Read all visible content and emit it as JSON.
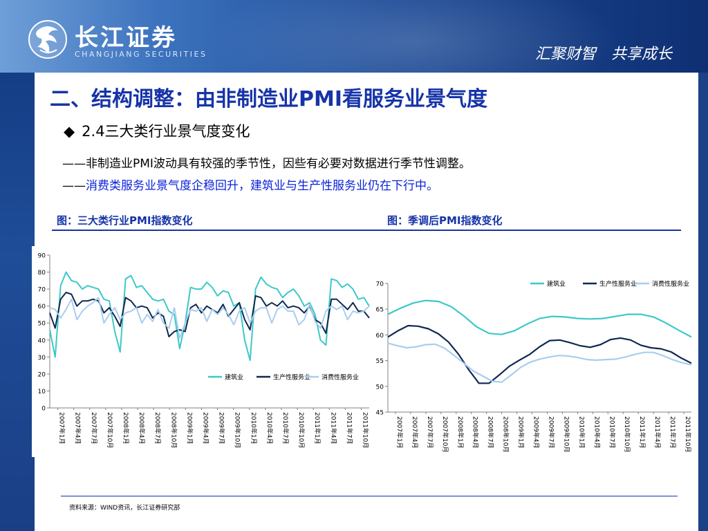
{
  "header": {
    "brand_cn": "长江证券",
    "brand_en": "CHANGJIANG SECURITIES",
    "slogan": "汇聚财智　共享成长"
  },
  "title": "二、结构调整：由非制造业PMI看服务业景气度",
  "subtitle": "2.4三大类行业景气度变化",
  "subtitle_bullet": "◆",
  "text_line1": "——非制造业PMI波动具有较强的季节性，因些有必要对数据进行季节性调整。",
  "text_line2_dash": "——",
  "text_line2_body": "消费类服务业景气度企稳回升，建筑业与生产性服务业仍在下行中。",
  "figure1_title": "图：三大类行业PMI指数变化",
  "figure2_title": "图：季调后PMI指数变化",
  "source_note": "资料来源：WIND资讯，长江证券研究部",
  "colors": {
    "construction": "#3cc8c8",
    "producer_services": "#0f2850",
    "consumer_services": "#a8cdf0",
    "accent_blue": "#1633a8"
  },
  "chart_data": [
    {
      "type": "line",
      "title": "",
      "ylim": [
        0,
        90
      ],
      "yticks": [
        0,
        10,
        20,
        30,
        40,
        50,
        60,
        70,
        80,
        90
      ],
      "x_tick_labels": [
        "2007年1月",
        "2007年4月",
        "2007年7月",
        "2007年10月",
        "2008年1月",
        "2008年4月",
        "2008年7月",
        "2008年10月",
        "2009年1月",
        "2009年4月",
        "2009年7月",
        "2009年10月",
        "2010年1月",
        "2010年4月",
        "2010年7月",
        "2010年10月",
        "2011年1月",
        "2011年4月",
        "2011年7月",
        "2011年10月"
      ],
      "grid": false,
      "legend_position": "bottom-right",
      "series": [
        {
          "name": "建筑业",
          "values": [
            46,
            30,
            72,
            80,
            75,
            74,
            70,
            72,
            71,
            70,
            64,
            63,
            45,
            33,
            76,
            78,
            71,
            72,
            68,
            64,
            63,
            64,
            57,
            55,
            35,
            50,
            71,
            70,
            70,
            74,
            71,
            66,
            69,
            68,
            60,
            62,
            40,
            28,
            70,
            77,
            73,
            71,
            70,
            65,
            68,
            70,
            66,
            60,
            62,
            55,
            40,
            37,
            76,
            75,
            71,
            73,
            70,
            64,
            65,
            60
          ]
        },
        {
          "name": "生产性服务业",
          "values": [
            56,
            47,
            64,
            68,
            67,
            60,
            63,
            63,
            64,
            63,
            56,
            59,
            54,
            48,
            65,
            63,
            59,
            60,
            59,
            53,
            56,
            54,
            42,
            45,
            46,
            45,
            59,
            61,
            56,
            60,
            58,
            56,
            61,
            54,
            58,
            62,
            52,
            46,
            66,
            65,
            60,
            62,
            60,
            63,
            59,
            60,
            59,
            56,
            60,
            52,
            50,
            44,
            64,
            64,
            61,
            58,
            62,
            57,
            57,
            53
          ]
        },
        {
          "name": "消费性服务业",
          "values": [
            59,
            58,
            53,
            58,
            64,
            52,
            57,
            60,
            62,
            65,
            50,
            55,
            59,
            52,
            56,
            57,
            59,
            50,
            55,
            51,
            58,
            50,
            47,
            59,
            41,
            50,
            58,
            57,
            59,
            51,
            58,
            55,
            59,
            55,
            49,
            57,
            59,
            50,
            57,
            59,
            59,
            50,
            58,
            60,
            57,
            57,
            49,
            52,
            61,
            51,
            47,
            57,
            60,
            58,
            60,
            52,
            57,
            56,
            57,
            60
          ]
        }
      ]
    },
    {
      "type": "line",
      "title": "",
      "ylim": [
        45,
        70
      ],
      "yticks": [
        45,
        50,
        55,
        60,
        65,
        70
      ],
      "x_tick_labels": [
        "2007年1月",
        "2007年4月",
        "2007年7月",
        "2007年10月",
        "2008年1月",
        "2008年4月",
        "2008年7月",
        "2008年10月",
        "2009年1月",
        "2009年4月",
        "2009年7月",
        "2009年10月",
        "2010年1月",
        "2010年4月",
        "2010年7月",
        "2010年10月",
        "2011年1月",
        "2011年4月",
        "2011年7月",
        "2011年10月"
      ],
      "grid": false,
      "legend_position": "top-right",
      "series": [
        {
          "name": "建筑业",
          "values": [
            64,
            65.2,
            66.2,
            66.7,
            66.5,
            65.5,
            63.7,
            61.6,
            60.3,
            60.1,
            60.8,
            62.1,
            63.2,
            63.6,
            63.5,
            63.2,
            63.1,
            63.2,
            63.6,
            64.0,
            64.0,
            63.5,
            62.3,
            60.9,
            59.6
          ]
        },
        {
          "name": "生产性服务业",
          "values": [
            59.6,
            60.8,
            61.8,
            61.7,
            61.2,
            60.2,
            58.6,
            56.2,
            53.2,
            50.6,
            50.6,
            52.2,
            53.9,
            55.1,
            56.2,
            57.7,
            58.9,
            59.0,
            58.5,
            57.9,
            57.6,
            58.1,
            59.1,
            59.4,
            59.0,
            58.0,
            57.5,
            57.3,
            56.7,
            55.5,
            54.5
          ]
        },
        {
          "name": "消费性服务业",
          "values": [
            58.4,
            57.9,
            57.5,
            57.7,
            58.1,
            58.2,
            57.4,
            56.0,
            54.5,
            53.0,
            52.0,
            51.0,
            50.8,
            52.2,
            53.7,
            54.7,
            55.3,
            55.7,
            56.0,
            55.9,
            55.6,
            55.2,
            55.1,
            55.2,
            55.3,
            55.7,
            56.2,
            56.6,
            56.6,
            56.0,
            55.2,
            54.6,
            54.2
          ]
        }
      ]
    }
  ]
}
